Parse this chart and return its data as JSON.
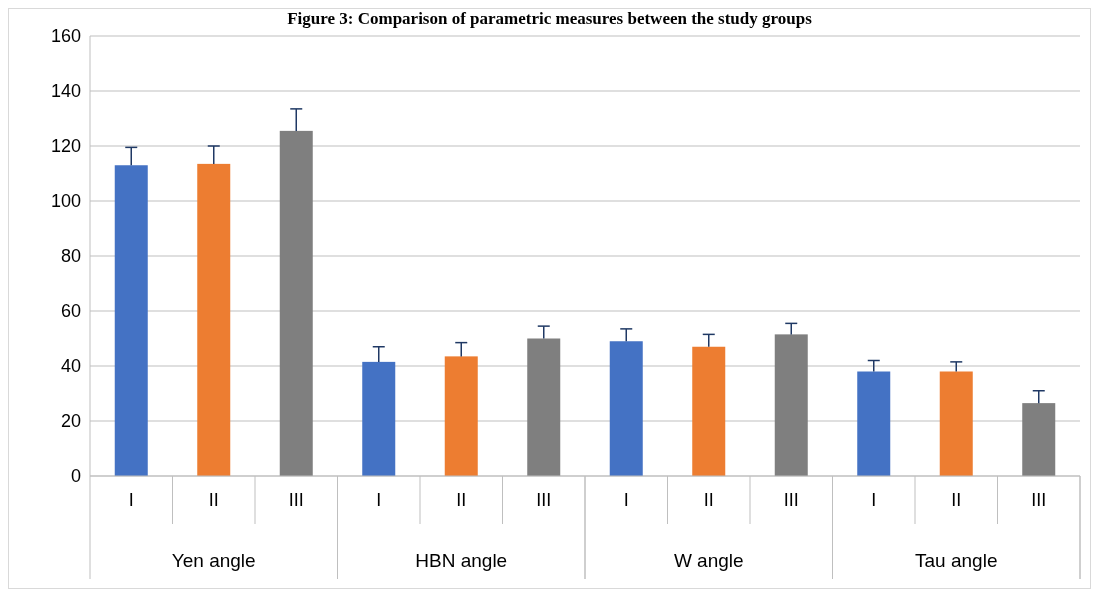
{
  "chart_data": {
    "type": "bar",
    "title": "Figure 3: Comparison of parametric measures between the study groups",
    "categories": [
      "Yen angle",
      "HBN angle",
      "W angle",
      "Tau angle"
    ],
    "series": [
      {
        "name": "I",
        "color": "#4472c4",
        "values": [
          113,
          41.5,
          49,
          38
        ],
        "errors": [
          [
            113,
            119.5
          ],
          [
            41.5,
            47
          ],
          [
            49,
            53.5
          ],
          [
            38,
            42
          ]
        ]
      },
      {
        "name": "II",
        "color": "#ed7d31",
        "values": [
          113.5,
          43.5,
          47,
          38
        ],
        "errors": [
          [
            113.5,
            120
          ],
          [
            43.5,
            48.5
          ],
          [
            47,
            51.5
          ],
          [
            38,
            41.5
          ]
        ]
      },
      {
        "name": "III",
        "color": "#7f7f7f",
        "values": [
          125.5,
          50,
          51.5,
          26.5
        ],
        "errors": [
          [
            125.5,
            133.5
          ],
          [
            50,
            54.5
          ],
          [
            51.5,
            55.5
          ],
          [
            26.5,
            31
          ]
        ]
      }
    ],
    "ylim": [
      0,
      160
    ],
    "yticks": [
      0,
      20,
      40,
      60,
      80,
      100,
      120,
      140,
      160
    ],
    "grid": "y"
  }
}
